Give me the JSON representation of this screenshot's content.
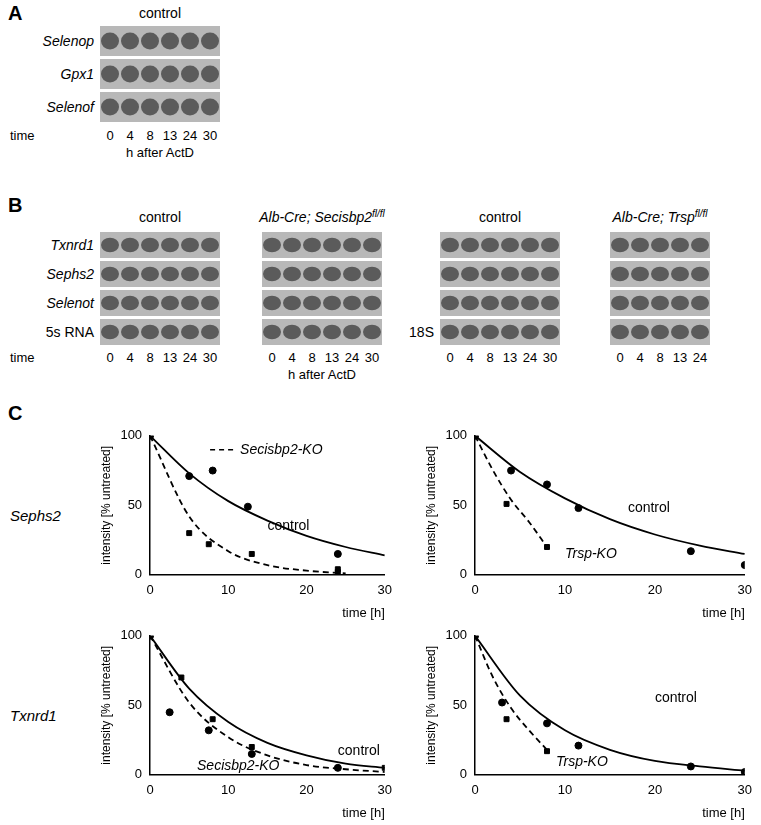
{
  "panel_A": {
    "label": "A",
    "blots": [
      {
        "title": {
          "text": "control"
        },
        "rows": [
          "Selenop",
          "Gpx1",
          "Selenof"
        ],
        "time": [
          "0",
          "4",
          "8",
          "13",
          "24",
          "30"
        ],
        "time_label": "time",
        "time_unit": "h after ActD"
      }
    ]
  },
  "panel_B": {
    "label": "B",
    "blots": [
      {
        "title": {
          "text": "control"
        },
        "rows": [
          "Txnrd1",
          "Sephs2",
          "Selenot",
          "5s RNA"
        ],
        "time": [
          "0",
          "4",
          "8",
          "13",
          "24",
          "30"
        ],
        "time_label": "time"
      },
      {
        "title": {
          "text": "Alb-Cre; Secisbp2",
          "sup": "fl/fl"
        },
        "rows": [
          null,
          null,
          null,
          null
        ],
        "time": [
          "0",
          "4",
          "8",
          "13",
          "24",
          "30"
        ],
        "time_unit": "h after ActD"
      },
      {
        "title": {
          "text": "control"
        },
        "rows": [
          null,
          null,
          null,
          "18S"
        ],
        "time": [
          "0",
          "4",
          "8",
          "13",
          "24",
          "30"
        ]
      },
      {
        "title": {
          "text": "Alb-Cre; Trsp",
          "sup": "fl/fl"
        },
        "rows": [
          null,
          null,
          null,
          null
        ],
        "time": [
          "0",
          "4",
          "8",
          "13",
          "24"
        ]
      }
    ]
  },
  "panel_C": {
    "label": "C"
  },
  "chart_data": [
    {
      "type": "line",
      "row_label": "Sephs2",
      "x_label": "time [h]",
      "y_label": "intensity [% untreated]",
      "xlim": [
        0,
        30
      ],
      "xticks": [
        0,
        10,
        20,
        30
      ],
      "ylim": [
        0,
        100
      ],
      "yticks": [
        0,
        50,
        100
      ],
      "grid": false,
      "legend": "top",
      "series": [
        {
          "name": "control",
          "color": "#000000",
          "line_style": "solid",
          "marker": "circle",
          "x": [
            0,
            5,
            10,
            15,
            20,
            25,
            30
          ],
          "values": [
            100,
            73,
            53,
            39,
            28,
            20,
            14
          ],
          "points_x": [
            0,
            5,
            8,
            12.5,
            24
          ],
          "points": [
            100,
            71,
            75,
            49,
            15
          ],
          "annotation": {
            "x": 15,
            "y": 35
          }
        },
        {
          "name": "Secisbp2-KO",
          "color": "#000000",
          "line_style": "dashed",
          "marker": "square",
          "x": [
            0,
            5,
            10,
            15,
            20,
            25
          ],
          "values": [
            100,
            42,
            17,
            7,
            3,
            1
          ],
          "points_x": [
            0,
            5,
            7.5,
            13,
            24,
            24
          ],
          "points": [
            100,
            30,
            22,
            15,
            2,
            4
          ]
        }
      ]
    },
    {
      "type": "line",
      "row_label": null,
      "x_label": "time [h]",
      "y_label": "intensity [% untreated]",
      "xlim": [
        0,
        30
      ],
      "xticks": [
        0,
        10,
        20,
        30
      ],
      "ylim": [
        0,
        100
      ],
      "yticks": [
        0,
        50,
        100
      ],
      "grid": false,
      "series": [
        {
          "name": "control",
          "color": "#000000",
          "line_style": "solid",
          "marker": "circle",
          "x": [
            0,
            5,
            10,
            15,
            20,
            25,
            30
          ],
          "values": [
            100,
            74,
            55,
            40,
            29,
            21,
            15
          ],
          "points_x": [
            0,
            4,
            8,
            11.5,
            24,
            30
          ],
          "points": [
            100,
            75,
            65,
            48,
            17,
            7
          ],
          "annotation": {
            "x": 17,
            "y": 48
          }
        },
        {
          "name": "Trsp-KO",
          "color": "#000000",
          "line_style": "dashed",
          "marker": "square",
          "x": [
            0,
            2,
            4,
            6,
            8
          ],
          "values": [
            100,
            75,
            54,
            38,
            20
          ],
          "points_x": [
            0,
            3.5,
            8
          ],
          "points": [
            100,
            51,
            20
          ],
          "annotation": {
            "x": 10,
            "y": 15
          }
        }
      ]
    },
    {
      "type": "line",
      "row_label": "Txnrd1",
      "x_label": "time [h]",
      "y_label": "intensity [% untreated]",
      "xlim": [
        0,
        30
      ],
      "xticks": [
        0,
        10,
        20,
        30
      ],
      "ylim": [
        0,
        100
      ],
      "yticks": [
        0,
        50,
        100
      ],
      "grid": false,
      "series": [
        {
          "name": "control",
          "color": "#000000",
          "line_style": "solid",
          "marker": "circle",
          "x": [
            0,
            5,
            10,
            15,
            20,
            25,
            30
          ],
          "values": [
            100,
            62,
            38,
            23,
            14,
            8,
            5
          ],
          "points_x": [
            0,
            2.5,
            7.5,
            13,
            24
          ],
          "points": [
            100,
            45,
            32,
            15,
            5
          ],
          "annotation": {
            "x": 24,
            "y": 17
          }
        },
        {
          "name": "Secisbp2-KO",
          "color": "#000000",
          "line_style": "dashed",
          "marker": "square",
          "x": [
            0,
            5,
            10,
            15,
            20,
            25,
            30
          ],
          "values": [
            100,
            52,
            27,
            14,
            7,
            4,
            2
          ],
          "points_x": [
            0,
            4,
            8,
            13,
            30
          ],
          "points": [
            100,
            70,
            40,
            20,
            5
          ],
          "annotation": {
            "x": 6,
            "y": 6
          }
        }
      ]
    },
    {
      "type": "line",
      "row_label": null,
      "x_label": "time [h]",
      "y_label": "intensity [% untreated]",
      "xlim": [
        0,
        30
      ],
      "xticks": [
        0,
        10,
        20,
        30
      ],
      "ylim": [
        0,
        100
      ],
      "yticks": [
        0,
        50,
        100
      ],
      "grid": false,
      "series": [
        {
          "name": "control",
          "color": "#000000",
          "line_style": "solid",
          "marker": "circle",
          "x": [
            0,
            5,
            10,
            15,
            20,
            25,
            30
          ],
          "values": [
            100,
            57,
            32,
            18,
            10,
            6,
            3
          ],
          "points_x": [
            0,
            3,
            8,
            11.5,
            24,
            30
          ],
          "points": [
            100,
            52,
            37,
            21,
            6,
            2
          ],
          "annotation": {
            "x": 20,
            "y": 55
          }
        },
        {
          "name": "Trsp-KO",
          "color": "#000000",
          "line_style": "dashed",
          "marker": "square",
          "x": [
            0,
            2,
            4,
            6,
            8
          ],
          "values": [
            100,
            70,
            48,
            32,
            18
          ],
          "points_x": [
            0,
            3.5,
            8
          ],
          "points": [
            100,
            40,
            17
          ],
          "annotation": {
            "x": 9,
            "y": 9
          }
        }
      ]
    }
  ]
}
